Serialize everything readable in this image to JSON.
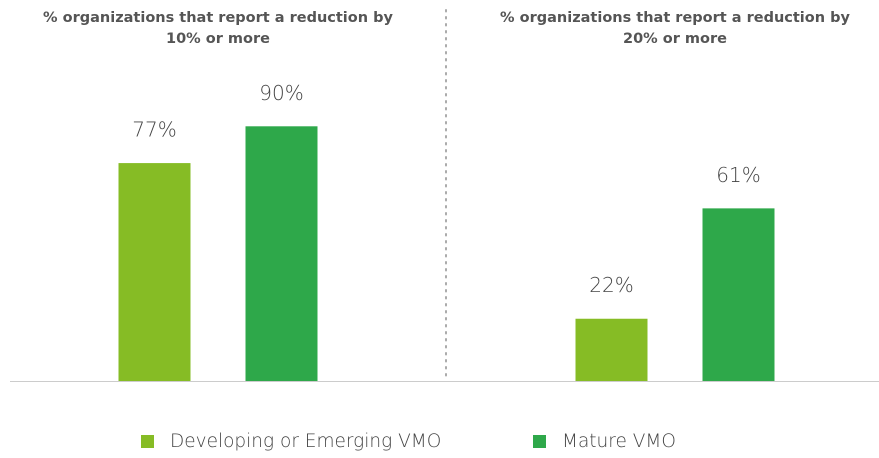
{
  "chart_data": {
    "type": "bar",
    "categories": [
      "% organizations that report a reduction by 10% or more",
      "% organizations that report a reduction by 20% or more"
    ],
    "series": [
      {
        "name": "Developing or Emerging VMO",
        "color": "#86bc25",
        "values": [
          77,
          22
        ],
        "value_labels": [
          "77%",
          "22%"
        ]
      },
      {
        "name": "Mature VMO",
        "color": "#2ea84a",
        "values": [
          90,
          61
        ],
        "value_labels": [
          "90%",
          "61%"
        ]
      }
    ],
    "ylim": [
      0,
      100
    ]
  }
}
